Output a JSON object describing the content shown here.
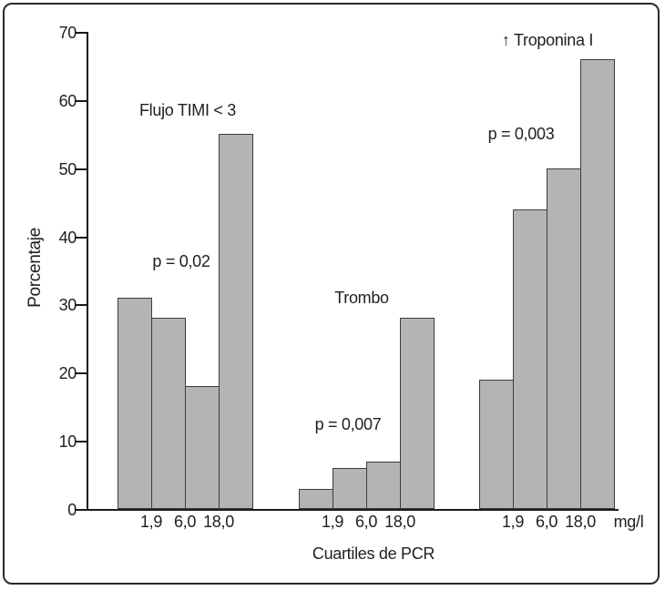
{
  "chart_data": {
    "type": "bar",
    "title": "",
    "ylabel": "Porcentaje",
    "xlabel": "Cuartiles de PCR",
    "unit": "mg/l",
    "ylim": [
      0,
      70
    ],
    "yticks": [
      0,
      10,
      20,
      30,
      40,
      50,
      60,
      70
    ],
    "grid": false,
    "legend_position": "none",
    "quartile_boundary_labels": [
      "1,9",
      "6,0",
      "18,0"
    ],
    "groups": [
      {
        "title": "Flujo TIMI < 3",
        "p_label": "p = 0,02",
        "values": [
          31,
          28,
          18,
          55
        ]
      },
      {
        "title": "Trombo",
        "p_label": "p = 0,007",
        "values": [
          3,
          6,
          7,
          28
        ]
      },
      {
        "title": "↑ Troponina I",
        "p_label": "p = 0,003",
        "values": [
          19,
          44,
          50,
          66
        ]
      }
    ],
    "colors": {
      "bar_fill": "#b3b4b5",
      "bar_border": "#3c3c3c",
      "axis": "#1a1a1a",
      "text": "#1f1f1f",
      "frame_border": "#2a2a2a",
      "background": "#ffffff"
    }
  }
}
